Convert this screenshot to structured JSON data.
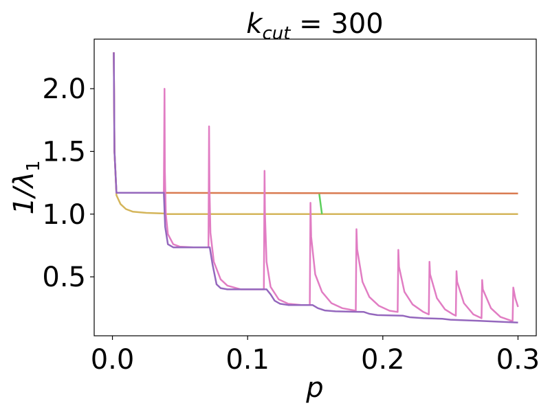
{
  "chart_data": {
    "type": "line",
    "title": "k_cut = 300",
    "title_main": "k",
    "title_sub": "cut",
    "title_rest": " = 300",
    "xlabel": "p",
    "ylabel_prefix": "1/λ",
    "ylabel_sub": "1",
    "xlim": [
      -0.0135,
      0.3135
    ],
    "ylim": [
      0.03,
      2.395
    ],
    "xticks": [
      0.0,
      0.1,
      0.2,
      0.3
    ],
    "xtick_labels": [
      "0.0",
      "0.1",
      "0.2",
      "0.3"
    ],
    "yticks": [
      0.5,
      1.0,
      1.5,
      2.0
    ],
    "ytick_labels": [
      "0.5",
      "1.0",
      "1.5",
      "2.0"
    ],
    "grid": false,
    "legend": "none",
    "series": [
      {
        "color": "#d4b55a",
        "points": [
          [
            0.001,
            2.29
          ],
          [
            0.0015,
            1.5
          ],
          [
            0.003,
            1.15
          ],
          [
            0.006,
            1.08
          ],
          [
            0.01,
            1.04
          ],
          [
            0.015,
            1.02
          ],
          [
            0.025,
            1.01
          ],
          [
            0.038,
            1.005
          ],
          [
            0.04,
            1.0
          ],
          [
            0.3,
            1.0
          ]
        ]
      },
      {
        "color": "#d97a50",
        "points": [
          [
            0.001,
            2.29
          ],
          [
            0.0015,
            1.5
          ],
          [
            0.003,
            1.17
          ],
          [
            0.3,
            1.165
          ]
        ]
      },
      {
        "color": "#5ccf5c",
        "points": [
          [
            0.153,
            1.16
          ],
          [
            0.155,
            1.0
          ]
        ]
      },
      {
        "color": "#e17dc3",
        "points": [
          [
            0.001,
            2.29
          ],
          [
            0.0015,
            1.5
          ],
          [
            0.003,
            1.17
          ],
          [
            0.038,
            1.17
          ],
          [
            0.0385,
            2.0
          ],
          [
            0.0388,
            1.35
          ],
          [
            0.0395,
            1.0
          ],
          [
            0.041,
            0.84
          ],
          [
            0.045,
            0.76
          ],
          [
            0.05,
            0.74
          ],
          [
            0.06,
            0.735
          ],
          [
            0.071,
            0.735
          ],
          [
            0.0715,
            1.7
          ],
          [
            0.0718,
            1.2
          ],
          [
            0.0725,
            0.85
          ],
          [
            0.075,
            0.62
          ],
          [
            0.08,
            0.48
          ],
          [
            0.085,
            0.43
          ],
          [
            0.095,
            0.4
          ],
          [
            0.112,
            0.4
          ],
          [
            0.1125,
            1.345
          ],
          [
            0.1128,
            1.0
          ],
          [
            0.114,
            0.62
          ],
          [
            0.117,
            0.42
          ],
          [
            0.123,
            0.32
          ],
          [
            0.13,
            0.285
          ],
          [
            0.14,
            0.275
          ],
          [
            0.146,
            0.275
          ],
          [
            0.1465,
            1.09
          ],
          [
            0.147,
            0.82
          ],
          [
            0.15,
            0.52
          ],
          [
            0.155,
            0.38
          ],
          [
            0.162,
            0.29
          ],
          [
            0.17,
            0.25
          ],
          [
            0.18,
            0.23
          ],
          [
            0.1805,
            0.88
          ],
          [
            0.181,
            0.72
          ],
          [
            0.185,
            0.46
          ],
          [
            0.19,
            0.34
          ],
          [
            0.197,
            0.27
          ],
          [
            0.205,
            0.23
          ],
          [
            0.211,
            0.22
          ],
          [
            0.2115,
            0.715
          ],
          [
            0.212,
            0.58
          ],
          [
            0.216,
            0.38
          ],
          [
            0.222,
            0.28
          ],
          [
            0.23,
            0.22
          ],
          [
            0.234,
            0.2
          ],
          [
            0.2345,
            0.62
          ],
          [
            0.235,
            0.52
          ],
          [
            0.24,
            0.33
          ],
          [
            0.246,
            0.24
          ],
          [
            0.252,
            0.2
          ],
          [
            0.254,
            0.19
          ],
          [
            0.2545,
            0.545
          ],
          [
            0.255,
            0.46
          ],
          [
            0.26,
            0.29
          ],
          [
            0.267,
            0.2
          ],
          [
            0.273,
            0.17
          ],
          [
            0.2735,
            0.475
          ],
          [
            0.274,
            0.4
          ],
          [
            0.28,
            0.25
          ],
          [
            0.287,
            0.18
          ],
          [
            0.295,
            0.15
          ],
          [
            0.296,
            0.15
          ],
          [
            0.2965,
            0.415
          ],
          [
            0.298,
            0.33
          ],
          [
            0.3,
            0.26
          ]
        ]
      },
      {
        "color": "#9467bd",
        "points": [
          [
            0.001,
            2.29
          ],
          [
            0.0015,
            1.5
          ],
          [
            0.003,
            1.17
          ],
          [
            0.038,
            1.17
          ],
          [
            0.039,
            0.9
          ],
          [
            0.041,
            0.76
          ],
          [
            0.045,
            0.735
          ],
          [
            0.072,
            0.735
          ],
          [
            0.074,
            0.6
          ],
          [
            0.077,
            0.44
          ],
          [
            0.08,
            0.41
          ],
          [
            0.085,
            0.4
          ],
          [
            0.114,
            0.4
          ],
          [
            0.117,
            0.36
          ],
          [
            0.12,
            0.31
          ],
          [
            0.124,
            0.285
          ],
          [
            0.13,
            0.275
          ],
          [
            0.148,
            0.275
          ],
          [
            0.152,
            0.25
          ],
          [
            0.157,
            0.232
          ],
          [
            0.165,
            0.225
          ],
          [
            0.186,
            0.22
          ],
          [
            0.19,
            0.205
          ],
          [
            0.196,
            0.195
          ],
          [
            0.215,
            0.19
          ],
          [
            0.22,
            0.178
          ],
          [
            0.23,
            0.17
          ],
          [
            0.244,
            0.165
          ],
          [
            0.25,
            0.158
          ],
          [
            0.27,
            0.15
          ],
          [
            0.28,
            0.145
          ],
          [
            0.29,
            0.14
          ],
          [
            0.3,
            0.135
          ]
        ]
      }
    ]
  }
}
